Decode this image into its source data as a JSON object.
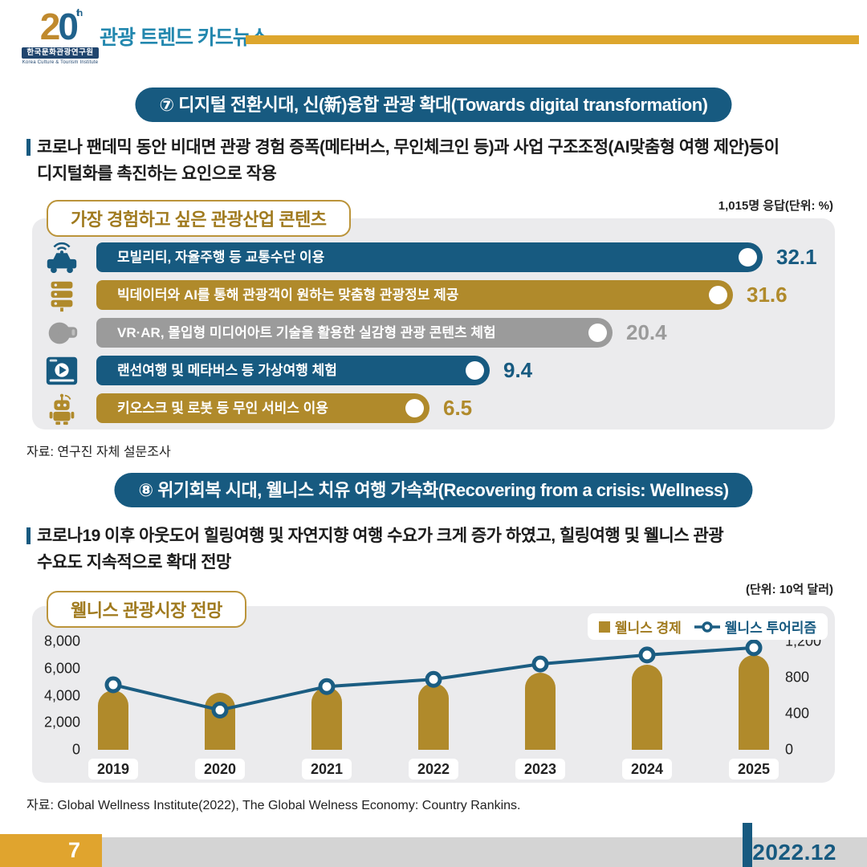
{
  "colors": {
    "navy": "#175a80",
    "gold": "#b08a2b",
    "gray": "#9b9b9b",
    "gold_bright": "#e0a42e",
    "gold_rule": "#dda62d",
    "teal_title": "#2287ae",
    "line_navy": "#1b5d82",
    "chart_bg": "#ebebed",
    "footer_gray": "#d4d4d4",
    "gold_text": "#a07a1e"
  },
  "header": {
    "logo_number": "20",
    "logo_suffix": "th",
    "logo_org_kr": "한국문화관광연구원",
    "logo_org_en": "Korea Culture & Tourism Institute",
    "title": "관광 트렌드 카드뉴스"
  },
  "section7": {
    "banner": "⑦ 디지털 전환시대, 신(新)융합 관광 확대(Towards digital transformation)",
    "body": [
      "코로나 팬데믹 동안 비대면 관광 경험 증폭(메타버스, 무인체크인 등)과 사업 구조조정(AI맞춤형 여행 제안)등이",
      "디지털화를 촉진하는 요인으로 작용"
    ],
    "source": "자료: 연구진 자체 설문조사"
  },
  "section8": {
    "banner": "⑧ 위기회복 시대, 웰니스 치유 여행 가속화(Recovering from a crisis: Wellness)",
    "body": [
      "코로나19 이후 아웃도어 힐링여행 및 자연지향 여행 수요가 크게 증가 하였고, 힐링여행 및 웰니스 관광",
      "수요도 지속적으로 확대 전망"
    ],
    "source": "자료: Global Wellness Institute(2022), The Global Welness Economy: Country Rankins."
  },
  "chart_data": [
    {
      "type": "bar",
      "orientation": "horizontal",
      "title": "가장 경험하고 싶은 관광산업 콘텐츠",
      "note": "1,015명 응답(단위: %)",
      "unit": "%",
      "categories": [
        "모빌리티, 자율주행 등 교통수단 이용",
        "빅데이터와 AI를 통해 관광객이 원하는 맞춤형 관광정보 제공",
        "VR·AR, 몰입형 미디어아트 기술을 활용한 실감형 관광 콘텐츠 체험",
        "랜선여행 및 메타버스 등 가상여행 체험",
        "키오스크 및 로봇 등 무인 서비스 이용"
      ],
      "values": [
        32.1,
        31.6,
        20.4,
        9.4,
        6.5
      ],
      "bar_colors": [
        "#175a80",
        "#b08a2b",
        "#9b9b9b",
        "#175a80",
        "#b08a2b"
      ],
      "icons": [
        "autonomous-car-icon",
        "big-data-server-icon",
        "vr-headset-icon",
        "video-player-icon",
        "robot-icon"
      ],
      "bar_length_pct": [
        100,
        95.5,
        77.5,
        59,
        50
      ]
    },
    {
      "type": "combo",
      "title": "웰니스 관광시장 전망",
      "unit": "(단위: 10억 달러)",
      "legend_position": "top-right",
      "categories": [
        "2019",
        "2020",
        "2021",
        "2022",
        "2023",
        "2024",
        "2025"
      ],
      "series": [
        {
          "name": "웰니스 경제",
          "type": "bar",
          "axis": "left",
          "color": "#b08a2b",
          "values": [
            4400,
            4200,
            4600,
            4900,
            5700,
            6300,
            7000
          ]
        },
        {
          "name": "웰니스 투어리즘",
          "type": "line",
          "axis": "right",
          "color": "#1b5d82",
          "values": [
            720,
            440,
            700,
            780,
            950,
            1050,
            1130
          ]
        }
      ],
      "left_axis": {
        "ticks": [
          "8,000",
          "6,000",
          "4,000",
          "2,000",
          "0"
        ],
        "min": 0,
        "max": 8000
      },
      "right_axis": {
        "ticks": [
          "1,200",
          "800",
          "400",
          "0"
        ],
        "min": 0,
        "max": 1200
      },
      "grid": false
    }
  ],
  "footer": {
    "page": "7",
    "date": "2022.12"
  }
}
